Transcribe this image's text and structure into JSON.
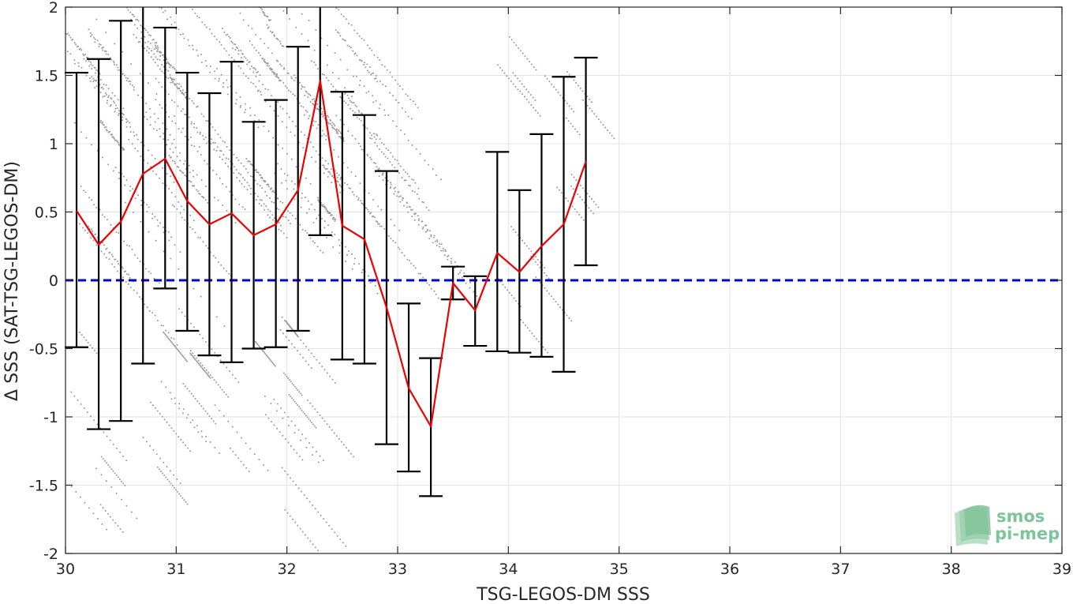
{
  "chart_data": {
    "type": "line",
    "xlabel": "TSG-LEGOS-DM SSS",
    "ylabel": "Δ SSS (SAT-TSG-LEGOS-DM)",
    "xlim": [
      30,
      39
    ],
    "ylim": [
      -2,
      2
    ],
    "xticks": [
      30,
      31,
      32,
      33,
      34,
      35,
      36,
      37,
      38,
      39
    ],
    "yticks": [
      -2,
      -1.5,
      -1,
      -0.5,
      0,
      0.5,
      1,
      1.5,
      2
    ],
    "ytick_labels": [
      "-2",
      "-1.5",
      "-1",
      "-0.5",
      "0",
      "0.5",
      "1",
      "1.5",
      "2"
    ],
    "grid": true,
    "series": [
      {
        "kind": "mean_line",
        "color": "#ee0000",
        "x": [
          30.1,
          30.3,
          30.5,
          30.7,
          30.9,
          31.1,
          31.3,
          31.5,
          31.7,
          31.9,
          32.1,
          32.3,
          32.5,
          32.7,
          32.9,
          33.1,
          33.3,
          33.5,
          33.7,
          33.9,
          34.1,
          34.3,
          34.5,
          34.7
        ],
        "y": [
          0.51,
          0.26,
          0.43,
          0.78,
          0.89,
          0.58,
          0.41,
          0.49,
          0.33,
          0.41,
          0.66,
          1.46,
          0.4,
          0.3,
          -0.2,
          -0.79,
          -1.07,
          -0.02,
          -0.22,
          0.2,
          0.06,
          0.25,
          0.41,
          0.87
        ]
      },
      {
        "kind": "error_bars",
        "color": "#000000",
        "x": [
          30.1,
          30.3,
          30.5,
          30.7,
          30.9,
          31.1,
          31.3,
          31.5,
          31.7,
          31.9,
          32.1,
          32.3,
          32.5,
          32.7,
          32.9,
          33.1,
          33.3,
          33.5,
          33.7,
          33.9,
          34.1,
          34.3,
          34.5,
          34.7
        ],
        "lower": [
          -0.49,
          -1.09,
          -1.03,
          -0.61,
          -0.06,
          -0.37,
          -0.55,
          -0.6,
          -0.5,
          -0.49,
          -0.37,
          0.33,
          -0.58,
          -0.61,
          -1.2,
          -1.4,
          -1.58,
          -0.14,
          -0.48,
          -0.52,
          -0.53,
          -0.56,
          -0.67,
          0.11
        ],
        "upper": [
          1.52,
          1.62,
          1.9,
          2.1,
          1.85,
          1.52,
          1.37,
          1.6,
          1.16,
          1.32,
          1.71,
          2.1,
          1.38,
          1.21,
          0.8,
          -0.17,
          -0.57,
          0.1,
          0.03,
          0.94,
          0.66,
          1.07,
          1.49,
          1.63
        ]
      },
      {
        "kind": "reference_line",
        "color": "#0000cc",
        "y": 0
      }
    ],
    "scatter_color": "#9a9a9a"
  },
  "logo": {
    "line1": "smos",
    "line2": "pi-mep"
  }
}
